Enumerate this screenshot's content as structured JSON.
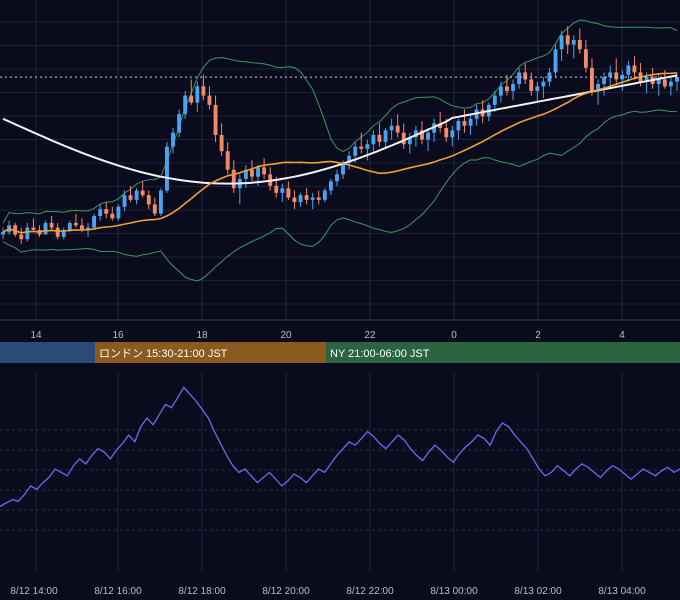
{
  "chart_data": [
    {
      "type": "candlestick",
      "title": "",
      "x_ticks": [
        "14",
        "16",
        "18",
        "20",
        "22",
        "0",
        "2",
        "4"
      ],
      "colors": {
        "up": "#4aa3f0",
        "down": "#f08a68",
        "ma_short": "#f0a030",
        "ma_long": "#f2f2f2",
        "bollinger": "#3a9a5a",
        "current_price_line": "#d0d0d0"
      },
      "series": [
        {
          "type": "candles",
          "values": [
            [
              0.8,
              0.83,
              0.78,
              0.81
            ],
            [
              0.81,
              0.86,
              0.8,
              0.84
            ],
            [
              0.84,
              0.85,
              0.79,
              0.8
            ],
            [
              0.8,
              0.83,
              0.76,
              0.78
            ],
            [
              0.78,
              0.85,
              0.77,
              0.83
            ],
            [
              0.83,
              0.87,
              0.81,
              0.82
            ],
            [
              0.82,
              0.84,
              0.79,
              0.8
            ],
            [
              0.8,
              0.86,
              0.8,
              0.85
            ],
            [
              0.85,
              0.88,
              0.82,
              0.83
            ],
            [
              0.83,
              0.85,
              0.78,
              0.79
            ],
            [
              0.79,
              0.83,
              0.78,
              0.82
            ],
            [
              0.82,
              0.86,
              0.81,
              0.85
            ],
            [
              0.85,
              0.89,
              0.83,
              0.84
            ],
            [
              0.84,
              0.87,
              0.81,
              0.82
            ],
            [
              0.82,
              0.85,
              0.79,
              0.83
            ],
            [
              0.83,
              0.89,
              0.82,
              0.88
            ],
            [
              0.88,
              0.93,
              0.86,
              0.91
            ],
            [
              0.91,
              0.94,
              0.87,
              0.89
            ],
            [
              0.89,
              0.92,
              0.86,
              0.87
            ],
            [
              0.87,
              0.93,
              0.86,
              0.92
            ],
            [
              0.92,
              0.99,
              0.9,
              0.97
            ],
            [
              0.97,
              1.01,
              0.94,
              0.95
            ],
            [
              0.95,
              1.0,
              0.93,
              0.99
            ],
            [
              0.99,
              1.03,
              0.96,
              0.97
            ],
            [
              0.97,
              0.99,
              0.91,
              0.93
            ],
            [
              0.93,
              0.96,
              0.88,
              0.89
            ],
            [
              0.89,
              1.0,
              0.88,
              0.99
            ],
            [
              0.99,
              1.2,
              0.98,
              1.18
            ],
            [
              1.18,
              1.26,
              1.15,
              1.24
            ],
            [
              1.24,
              1.34,
              1.22,
              1.32
            ],
            [
              1.32,
              1.42,
              1.3,
              1.4
            ],
            [
              1.4,
              1.47,
              1.36,
              1.37
            ],
            [
              1.37,
              1.46,
              1.33,
              1.44
            ],
            [
              1.44,
              1.49,
              1.38,
              1.4
            ],
            [
              1.4,
              1.44,
              1.34,
              1.36
            ],
            [
              1.36,
              1.4,
              1.2,
              1.23
            ],
            [
              1.23,
              1.28,
              1.14,
              1.16
            ],
            [
              1.16,
              1.2,
              1.06,
              1.08
            ],
            [
              1.08,
              1.12,
              0.98,
              1.0
            ],
            [
              1.0,
              1.06,
              0.93,
              1.04
            ],
            [
              1.04,
              1.1,
              1.0,
              1.08
            ],
            [
              1.08,
              1.12,
              1.03,
              1.05
            ],
            [
              1.05,
              1.1,
              1.01,
              1.09
            ],
            [
              1.09,
              1.13,
              1.04,
              1.06
            ],
            [
              1.06,
              1.09,
              0.99,
              1.01
            ],
            [
              1.01,
              1.05,
              0.96,
              0.98
            ],
            [
              0.98,
              1.02,
              0.94,
              1.0
            ],
            [
              1.0,
              1.03,
              0.95,
              0.96
            ],
            [
              0.96,
              0.99,
              0.91,
              0.94
            ],
            [
              0.94,
              0.98,
              0.92,
              0.97
            ],
            [
              0.97,
              1.0,
              0.93,
              0.95
            ],
            [
              0.95,
              0.98,
              0.91,
              0.96
            ],
            [
              0.96,
              0.99,
              0.93,
              0.95
            ],
            [
              0.95,
              1.0,
              0.94,
              0.99
            ],
            [
              0.99,
              1.04,
              0.97,
              1.03
            ],
            [
              1.03,
              1.08,
              1.01,
              1.06
            ],
            [
              1.06,
              1.12,
              1.04,
              1.11
            ],
            [
              1.11,
              1.16,
              1.08,
              1.14
            ],
            [
              1.14,
              1.2,
              1.11,
              1.18
            ],
            [
              1.18,
              1.24,
              1.15,
              1.17
            ],
            [
              1.17,
              1.21,
              1.12,
              1.19
            ],
            [
              1.19,
              1.25,
              1.16,
              1.23
            ],
            [
              1.23,
              1.28,
              1.18,
              1.2
            ],
            [
              1.2,
              1.26,
              1.17,
              1.25
            ],
            [
              1.25,
              1.3,
              1.21,
              1.27
            ],
            [
              1.27,
              1.32,
              1.22,
              1.24
            ],
            [
              1.24,
              1.28,
              1.17,
              1.19
            ],
            [
              1.19,
              1.24,
              1.15,
              1.22
            ],
            [
              1.22,
              1.27,
              1.18,
              1.25
            ],
            [
              1.25,
              1.29,
              1.19,
              1.21
            ],
            [
              1.21,
              1.26,
              1.16,
              1.24
            ],
            [
              1.24,
              1.3,
              1.2,
              1.28
            ],
            [
              1.28,
              1.33,
              1.24,
              1.26
            ],
            [
              1.26,
              1.3,
              1.2,
              1.22
            ],
            [
              1.22,
              1.27,
              1.18,
              1.25
            ],
            [
              1.25,
              1.3,
              1.21,
              1.29
            ],
            [
              1.29,
              1.34,
              1.24,
              1.27
            ],
            [
              1.27,
              1.32,
              1.23,
              1.3
            ],
            [
              1.3,
              1.36,
              1.27,
              1.34
            ],
            [
              1.34,
              1.38,
              1.28,
              1.31
            ],
            [
              1.31,
              1.37,
              1.29,
              1.36
            ],
            [
              1.36,
              1.42,
              1.33,
              1.4
            ],
            [
              1.4,
              1.46,
              1.37,
              1.44
            ],
            [
              1.44,
              1.49,
              1.4,
              1.42
            ],
            [
              1.42,
              1.47,
              1.38,
              1.45
            ],
            [
              1.45,
              1.52,
              1.43,
              1.5
            ],
            [
              1.5,
              1.54,
              1.45,
              1.47
            ],
            [
              1.47,
              1.5,
              1.4,
              1.42
            ],
            [
              1.42,
              1.46,
              1.37,
              1.44
            ],
            [
              1.44,
              1.48,
              1.39,
              1.46
            ],
            [
              1.46,
              1.52,
              1.44,
              1.5
            ],
            [
              1.5,
              1.62,
              1.48,
              1.6
            ],
            [
              1.6,
              1.68,
              1.55,
              1.66
            ],
            [
              1.66,
              1.7,
              1.58,
              1.62
            ],
            [
              1.62,
              1.66,
              1.56,
              1.64
            ],
            [
              1.64,
              1.69,
              1.58,
              1.6
            ],
            [
              1.6,
              1.64,
              1.5,
              1.52
            ],
            [
              1.52,
              1.56,
              1.4,
              1.42
            ],
            [
              1.42,
              1.47,
              1.36,
              1.45
            ],
            [
              1.45,
              1.5,
              1.4,
              1.48
            ],
            [
              1.48,
              1.53,
              1.43,
              1.5
            ],
            [
              1.5,
              1.56,
              1.45,
              1.47
            ],
            [
              1.47,
              1.51,
              1.42,
              1.49
            ],
            [
              1.49,
              1.55,
              1.46,
              1.53
            ],
            [
              1.53,
              1.57,
              1.47,
              1.5
            ],
            [
              1.5,
              1.54,
              1.44,
              1.46
            ],
            [
              1.46,
              1.5,
              1.41,
              1.48
            ],
            [
              1.48,
              1.52,
              1.43,
              1.45
            ],
            [
              1.45,
              1.49,
              1.4,
              1.47
            ],
            [
              1.47,
              1.51,
              1.43,
              1.44
            ],
            [
              1.44,
              1.48,
              1.4,
              1.46
            ],
            [
              1.46,
              1.5,
              1.42,
              1.48
            ]
          ]
        },
        {
          "name": "",
          "type": "line",
          "color": "#f0a030"
        },
        {
          "name": "",
          "type": "line",
          "color": "#f2f2f2"
        },
        {
          "name": "",
          "type": "band",
          "color": "#3a9a5a"
        }
      ],
      "current_price_marker": "dotted"
    },
    {
      "type": "line",
      "title": "",
      "color": "#6a6af0",
      "x_ticks": [
        "8/12 14:00",
        "8/12 16:00",
        "8/12 18:00",
        "8/12 20:00",
        "8/12 22:00",
        "8/13 00:00",
        "8/13 02:00",
        "8/13 04:00"
      ],
      "values": [
        0.08,
        0.1,
        0.12,
        0.11,
        0.15,
        0.2,
        0.18,
        0.22,
        0.25,
        0.3,
        0.28,
        0.26,
        0.32,
        0.36,
        0.33,
        0.38,
        0.42,
        0.4,
        0.36,
        0.41,
        0.45,
        0.5,
        0.46,
        0.55,
        0.6,
        0.56,
        0.62,
        0.68,
        0.66,
        0.72,
        0.78,
        0.74,
        0.7,
        0.65,
        0.6,
        0.52,
        0.45,
        0.38,
        0.32,
        0.28,
        0.3,
        0.26,
        0.22,
        0.25,
        0.28,
        0.24,
        0.2,
        0.23,
        0.27,
        0.25,
        0.22,
        0.26,
        0.3,
        0.28,
        0.33,
        0.38,
        0.42,
        0.46,
        0.44,
        0.48,
        0.52,
        0.49,
        0.45,
        0.42,
        0.46,
        0.5,
        0.47,
        0.42,
        0.38,
        0.35,
        0.4,
        0.44,
        0.41,
        0.37,
        0.34,
        0.39,
        0.43,
        0.46,
        0.5,
        0.48,
        0.44,
        0.52,
        0.57,
        0.55,
        0.5,
        0.46,
        0.42,
        0.36,
        0.3,
        0.26,
        0.28,
        0.32,
        0.29,
        0.26,
        0.3,
        0.33,
        0.31,
        0.28,
        0.25,
        0.29,
        0.32,
        0.3,
        0.27,
        0.24,
        0.27,
        0.3,
        0.28,
        0.26,
        0.29,
        0.31,
        0.28,
        0.3
      ]
    }
  ],
  "sessions": [
    {
      "label": "",
      "color": "#2a4a78"
    },
    {
      "label": "ロンドン 15:30-21:00 JST",
      "color": "#8a5a1e"
    },
    {
      "label": "NY 21:00-06:00 JST",
      "color": "#2a6440"
    }
  ]
}
